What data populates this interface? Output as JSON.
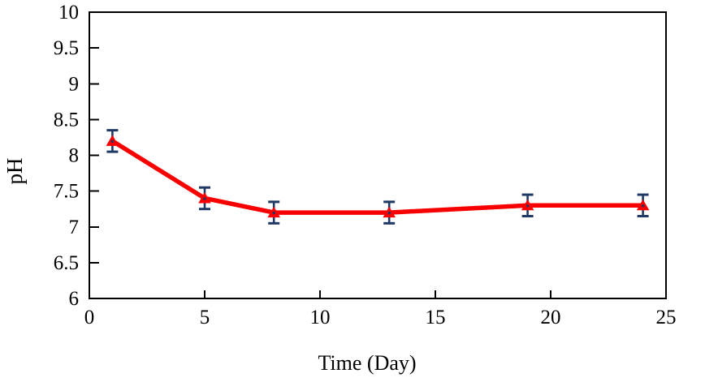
{
  "chart_data": {
    "type": "line",
    "title": "",
    "xlabel": "Time (Day)",
    "ylabel": "pH",
    "x": [
      1,
      5,
      8,
      13,
      19,
      24
    ],
    "series": [
      {
        "name": "pH",
        "values": [
          8.2,
          7.4,
          7.2,
          7.2,
          7.3,
          7.3
        ],
        "error": [
          0.15,
          0.15,
          0.15,
          0.15,
          0.15,
          0.15
        ],
        "marker": "triangle-up"
      }
    ],
    "xlim": [
      0,
      25
    ],
    "ylim": [
      6,
      10
    ],
    "x_ticks": [
      0,
      5,
      10,
      15,
      20,
      25
    ],
    "x_tick_labels": [
      "0",
      "5",
      "10",
      "15",
      "20",
      "25"
    ],
    "y_ticks": [
      6,
      6.5,
      7,
      7.5,
      8,
      8.5,
      9,
      9.5,
      10
    ],
    "y_tick_labels": [
      "6",
      "6.5",
      "7",
      "7.5",
      "8",
      "8.5",
      "9",
      "9.5",
      "10"
    ],
    "grid": false,
    "legend": "none",
    "frame": "box",
    "tick_direction": "in",
    "colors": {
      "line": "#f80000",
      "marker": "#f80000",
      "marker_center_dot": "#1f3864",
      "error_bar": "#1f3864",
      "axis": "#000000",
      "text": "#000000",
      "background": "#ffffff"
    }
  }
}
